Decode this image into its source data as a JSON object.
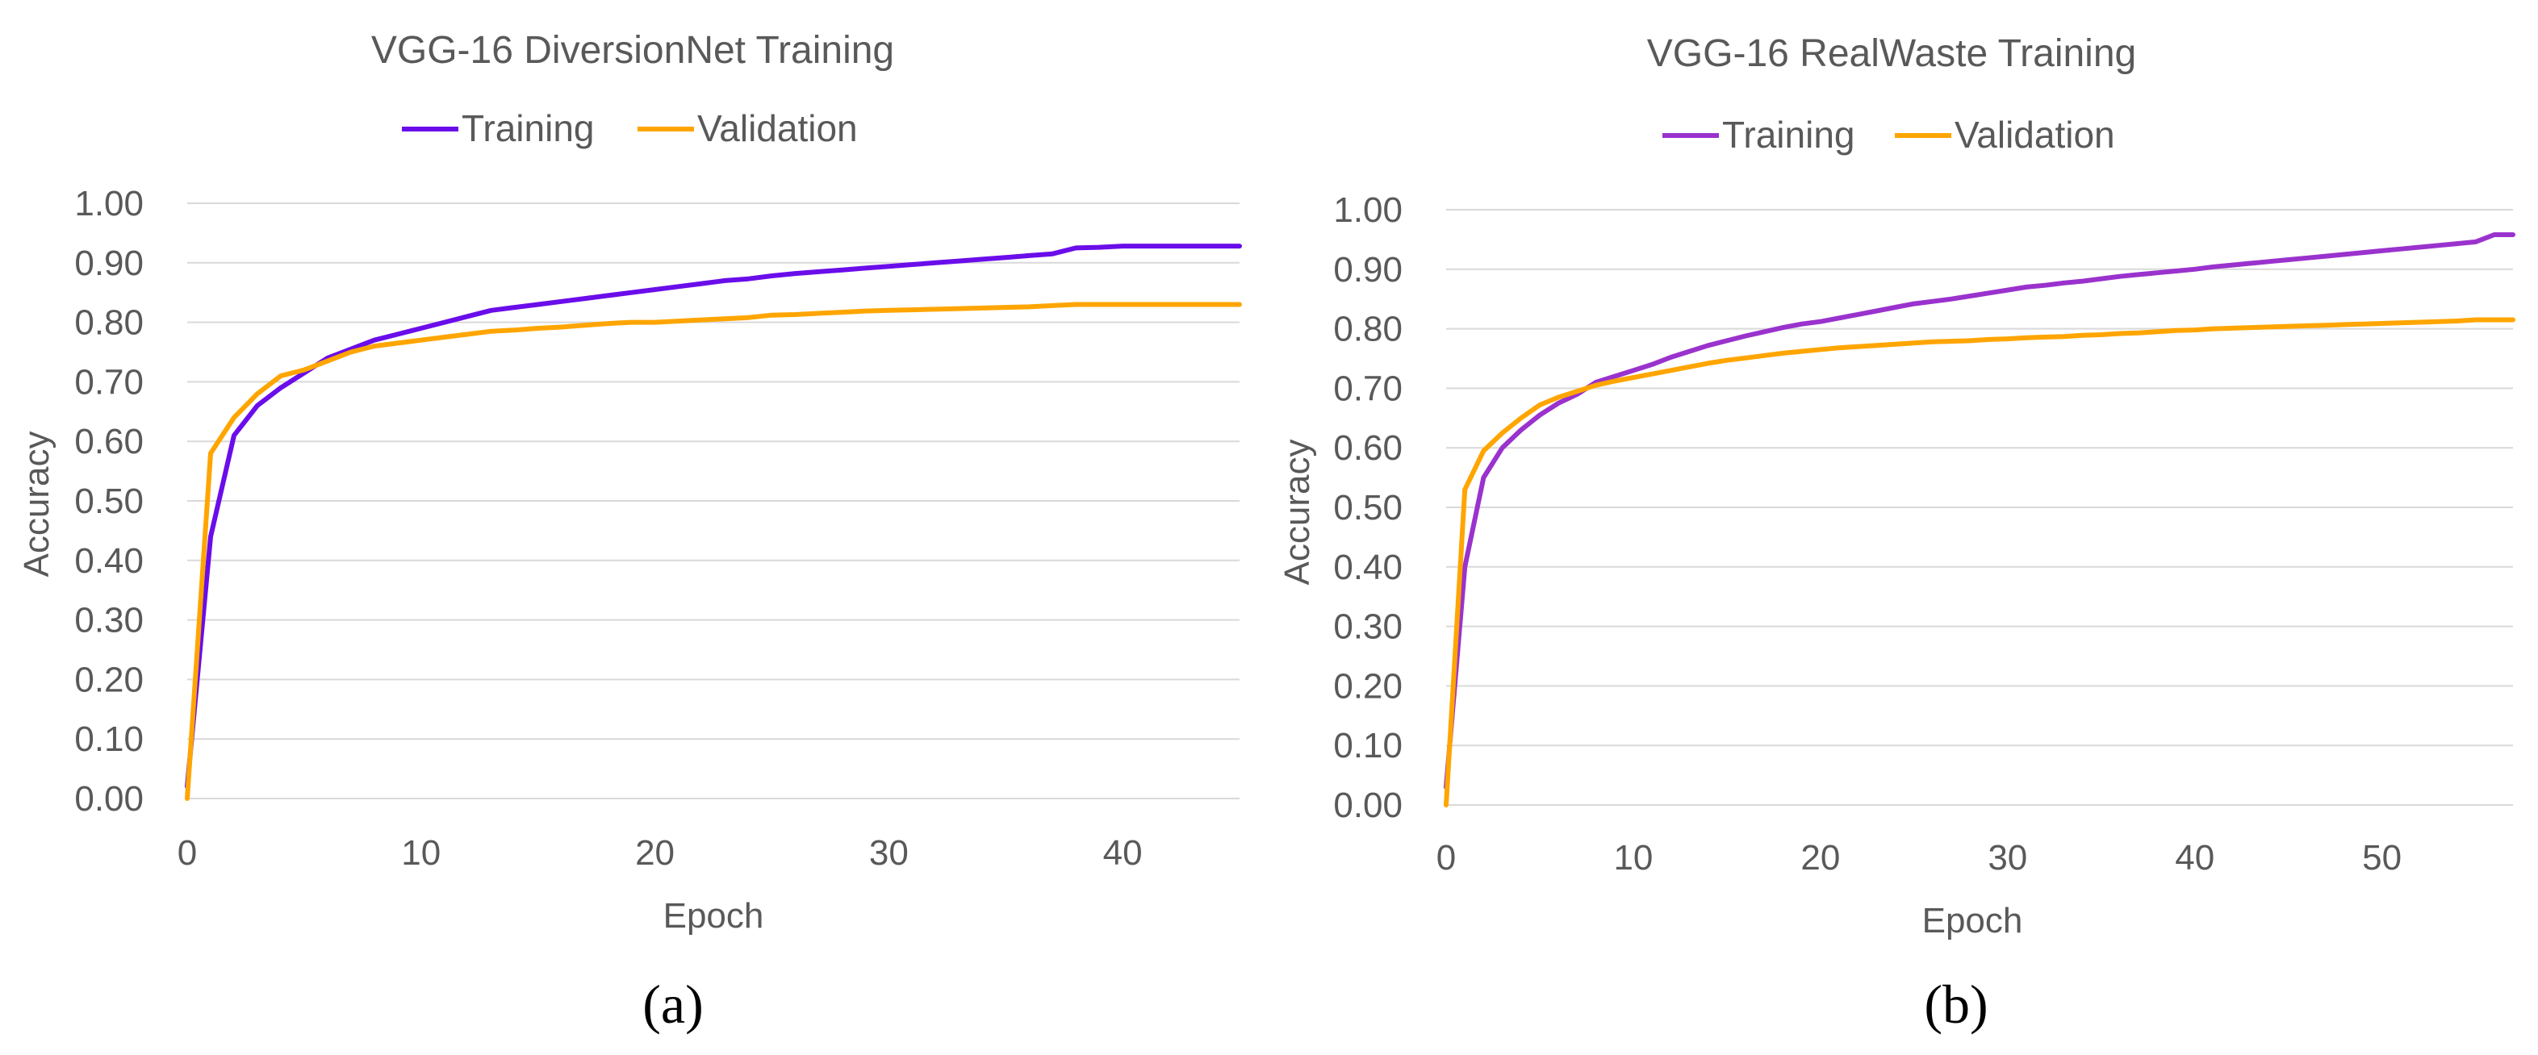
{
  "chart_data": [
    {
      "type": "line",
      "title": "VGG-16 DiversionNet Training",
      "xlabel": "Epoch",
      "ylabel": "Accuracy",
      "panel_label": "(a)",
      "xlim": [
        0,
        45
      ],
      "ylim": [
        0,
        1
      ],
      "xticks": [
        0,
        10,
        20,
        30,
        40
      ],
      "yticks": [
        "0.00",
        "0.10",
        "0.20",
        "0.30",
        "0.40",
        "0.50",
        "0.60",
        "0.70",
        "0.80",
        "0.90",
        "1.00"
      ],
      "grid": true,
      "legend_position": "top",
      "series": [
        {
          "name": "Training",
          "color": "#6a0dea",
          "x": [
            0,
            1,
            2,
            3,
            4,
            5,
            6,
            7,
            8,
            9,
            10,
            11,
            12,
            13,
            14,
            15,
            16,
            17,
            18,
            19,
            20,
            21,
            22,
            23,
            24,
            25,
            26,
            27,
            28,
            29,
            30,
            31,
            32,
            33,
            34,
            35,
            36,
            37,
            38,
            39,
            40,
            41,
            42,
            43,
            44,
            45
          ],
          "y": [
            0.02,
            0.44,
            0.61,
            0.66,
            0.69,
            0.715,
            0.74,
            0.755,
            0.77,
            0.78,
            0.79,
            0.8,
            0.81,
            0.82,
            0.825,
            0.83,
            0.835,
            0.84,
            0.845,
            0.85,
            0.855,
            0.86,
            0.865,
            0.87,
            0.873,
            0.878,
            0.882,
            0.885,
            0.888,
            0.891,
            0.894,
            0.897,
            0.9,
            0.903,
            0.906,
            0.909,
            0.912,
            0.915,
            0.925,
            0.926,
            0.928,
            0.928,
            0.928,
            0.928,
            0.928,
            0.928
          ]
        },
        {
          "name": "Validation",
          "color": "#ffa500",
          "x": [
            0,
            1,
            2,
            3,
            4,
            5,
            6,
            7,
            8,
            9,
            10,
            11,
            12,
            13,
            14,
            15,
            16,
            17,
            18,
            19,
            20,
            21,
            22,
            23,
            24,
            25,
            26,
            27,
            28,
            29,
            30,
            31,
            32,
            33,
            34,
            35,
            36,
            37,
            38,
            39,
            40,
            41,
            42,
            43,
            44,
            45
          ],
          "y": [
            0.0,
            0.58,
            0.64,
            0.68,
            0.71,
            0.72,
            0.735,
            0.75,
            0.76,
            0.765,
            0.77,
            0.775,
            0.78,
            0.785,
            0.787,
            0.79,
            0.792,
            0.795,
            0.798,
            0.8,
            0.8,
            0.802,
            0.804,
            0.806,
            0.808,
            0.812,
            0.813,
            0.815,
            0.817,
            0.819,
            0.82,
            0.821,
            0.822,
            0.823,
            0.824,
            0.825,
            0.826,
            0.828,
            0.83,
            0.83,
            0.83,
            0.83,
            0.83,
            0.83,
            0.83,
            0.83
          ]
        }
      ]
    },
    {
      "type": "line",
      "title": "VGG-16 RealWaste Training",
      "xlabel": "Epoch",
      "ylabel": "Accuracy",
      "panel_label": "(b)",
      "xlim": [
        0,
        57
      ],
      "ylim": [
        0,
        1
      ],
      "xticks": [
        0,
        10,
        20,
        30,
        40,
        50
      ],
      "yticks": [
        "0.00",
        "0.10",
        "0.20",
        "0.30",
        "0.40",
        "0.50",
        "0.60",
        "0.70",
        "0.80",
        "0.90",
        "1.00"
      ],
      "grid": true,
      "legend_position": "top",
      "series": [
        {
          "name": "Training",
          "color": "#9a32cd",
          "x": [
            0,
            1,
            2,
            3,
            4,
            5,
            6,
            7,
            8,
            9,
            10,
            11,
            12,
            13,
            14,
            15,
            16,
            17,
            18,
            19,
            20,
            21,
            22,
            23,
            24,
            25,
            26,
            27,
            28,
            29,
            30,
            31,
            32,
            33,
            34,
            35,
            36,
            37,
            38,
            39,
            40,
            41,
            42,
            43,
            44,
            45,
            46,
            47,
            48,
            49,
            50,
            51,
            52,
            53,
            54,
            55,
            56,
            57
          ],
          "y": [
            0.03,
            0.4,
            0.55,
            0.6,
            0.63,
            0.655,
            0.675,
            0.69,
            0.71,
            0.72,
            0.73,
            0.74,
            0.752,
            0.762,
            0.772,
            0.78,
            0.788,
            0.795,
            0.802,
            0.808,
            0.812,
            0.818,
            0.824,
            0.83,
            0.836,
            0.842,
            0.846,
            0.85,
            0.855,
            0.86,
            0.865,
            0.87,
            0.873,
            0.877,
            0.88,
            0.884,
            0.888,
            0.891,
            0.894,
            0.897,
            0.9,
            0.904,
            0.907,
            0.91,
            0.913,
            0.916,
            0.919,
            0.922,
            0.925,
            0.928,
            0.931,
            0.934,
            0.937,
            0.94,
            0.943,
            0.946,
            0.958,
            0.958
          ]
        },
        {
          "name": "Validation",
          "color": "#ffa500",
          "x": [
            0,
            1,
            2,
            3,
            4,
            5,
            6,
            7,
            8,
            9,
            10,
            11,
            12,
            13,
            14,
            15,
            16,
            17,
            18,
            19,
            20,
            21,
            22,
            23,
            24,
            25,
            26,
            27,
            28,
            29,
            30,
            31,
            32,
            33,
            34,
            35,
            36,
            37,
            38,
            39,
            40,
            41,
            42,
            43,
            44,
            45,
            46,
            47,
            48,
            49,
            50,
            51,
            52,
            53,
            54,
            55,
            56,
            57
          ],
          "y": [
            0.0,
            0.53,
            0.595,
            0.625,
            0.65,
            0.672,
            0.685,
            0.695,
            0.705,
            0.712,
            0.718,
            0.724,
            0.73,
            0.736,
            0.742,
            0.747,
            0.751,
            0.755,
            0.759,
            0.762,
            0.765,
            0.768,
            0.77,
            0.772,
            0.774,
            0.776,
            0.778,
            0.779,
            0.78,
            0.782,
            0.783,
            0.785,
            0.786,
            0.787,
            0.789,
            0.79,
            0.792,
            0.793,
            0.795,
            0.797,
            0.798,
            0.8,
            0.801,
            0.802,
            0.803,
            0.804,
            0.805,
            0.806,
            0.807,
            0.808,
            0.809,
            0.81,
            0.811,
            0.812,
            0.813,
            0.815,
            0.815,
            0.815
          ]
        }
      ]
    }
  ]
}
